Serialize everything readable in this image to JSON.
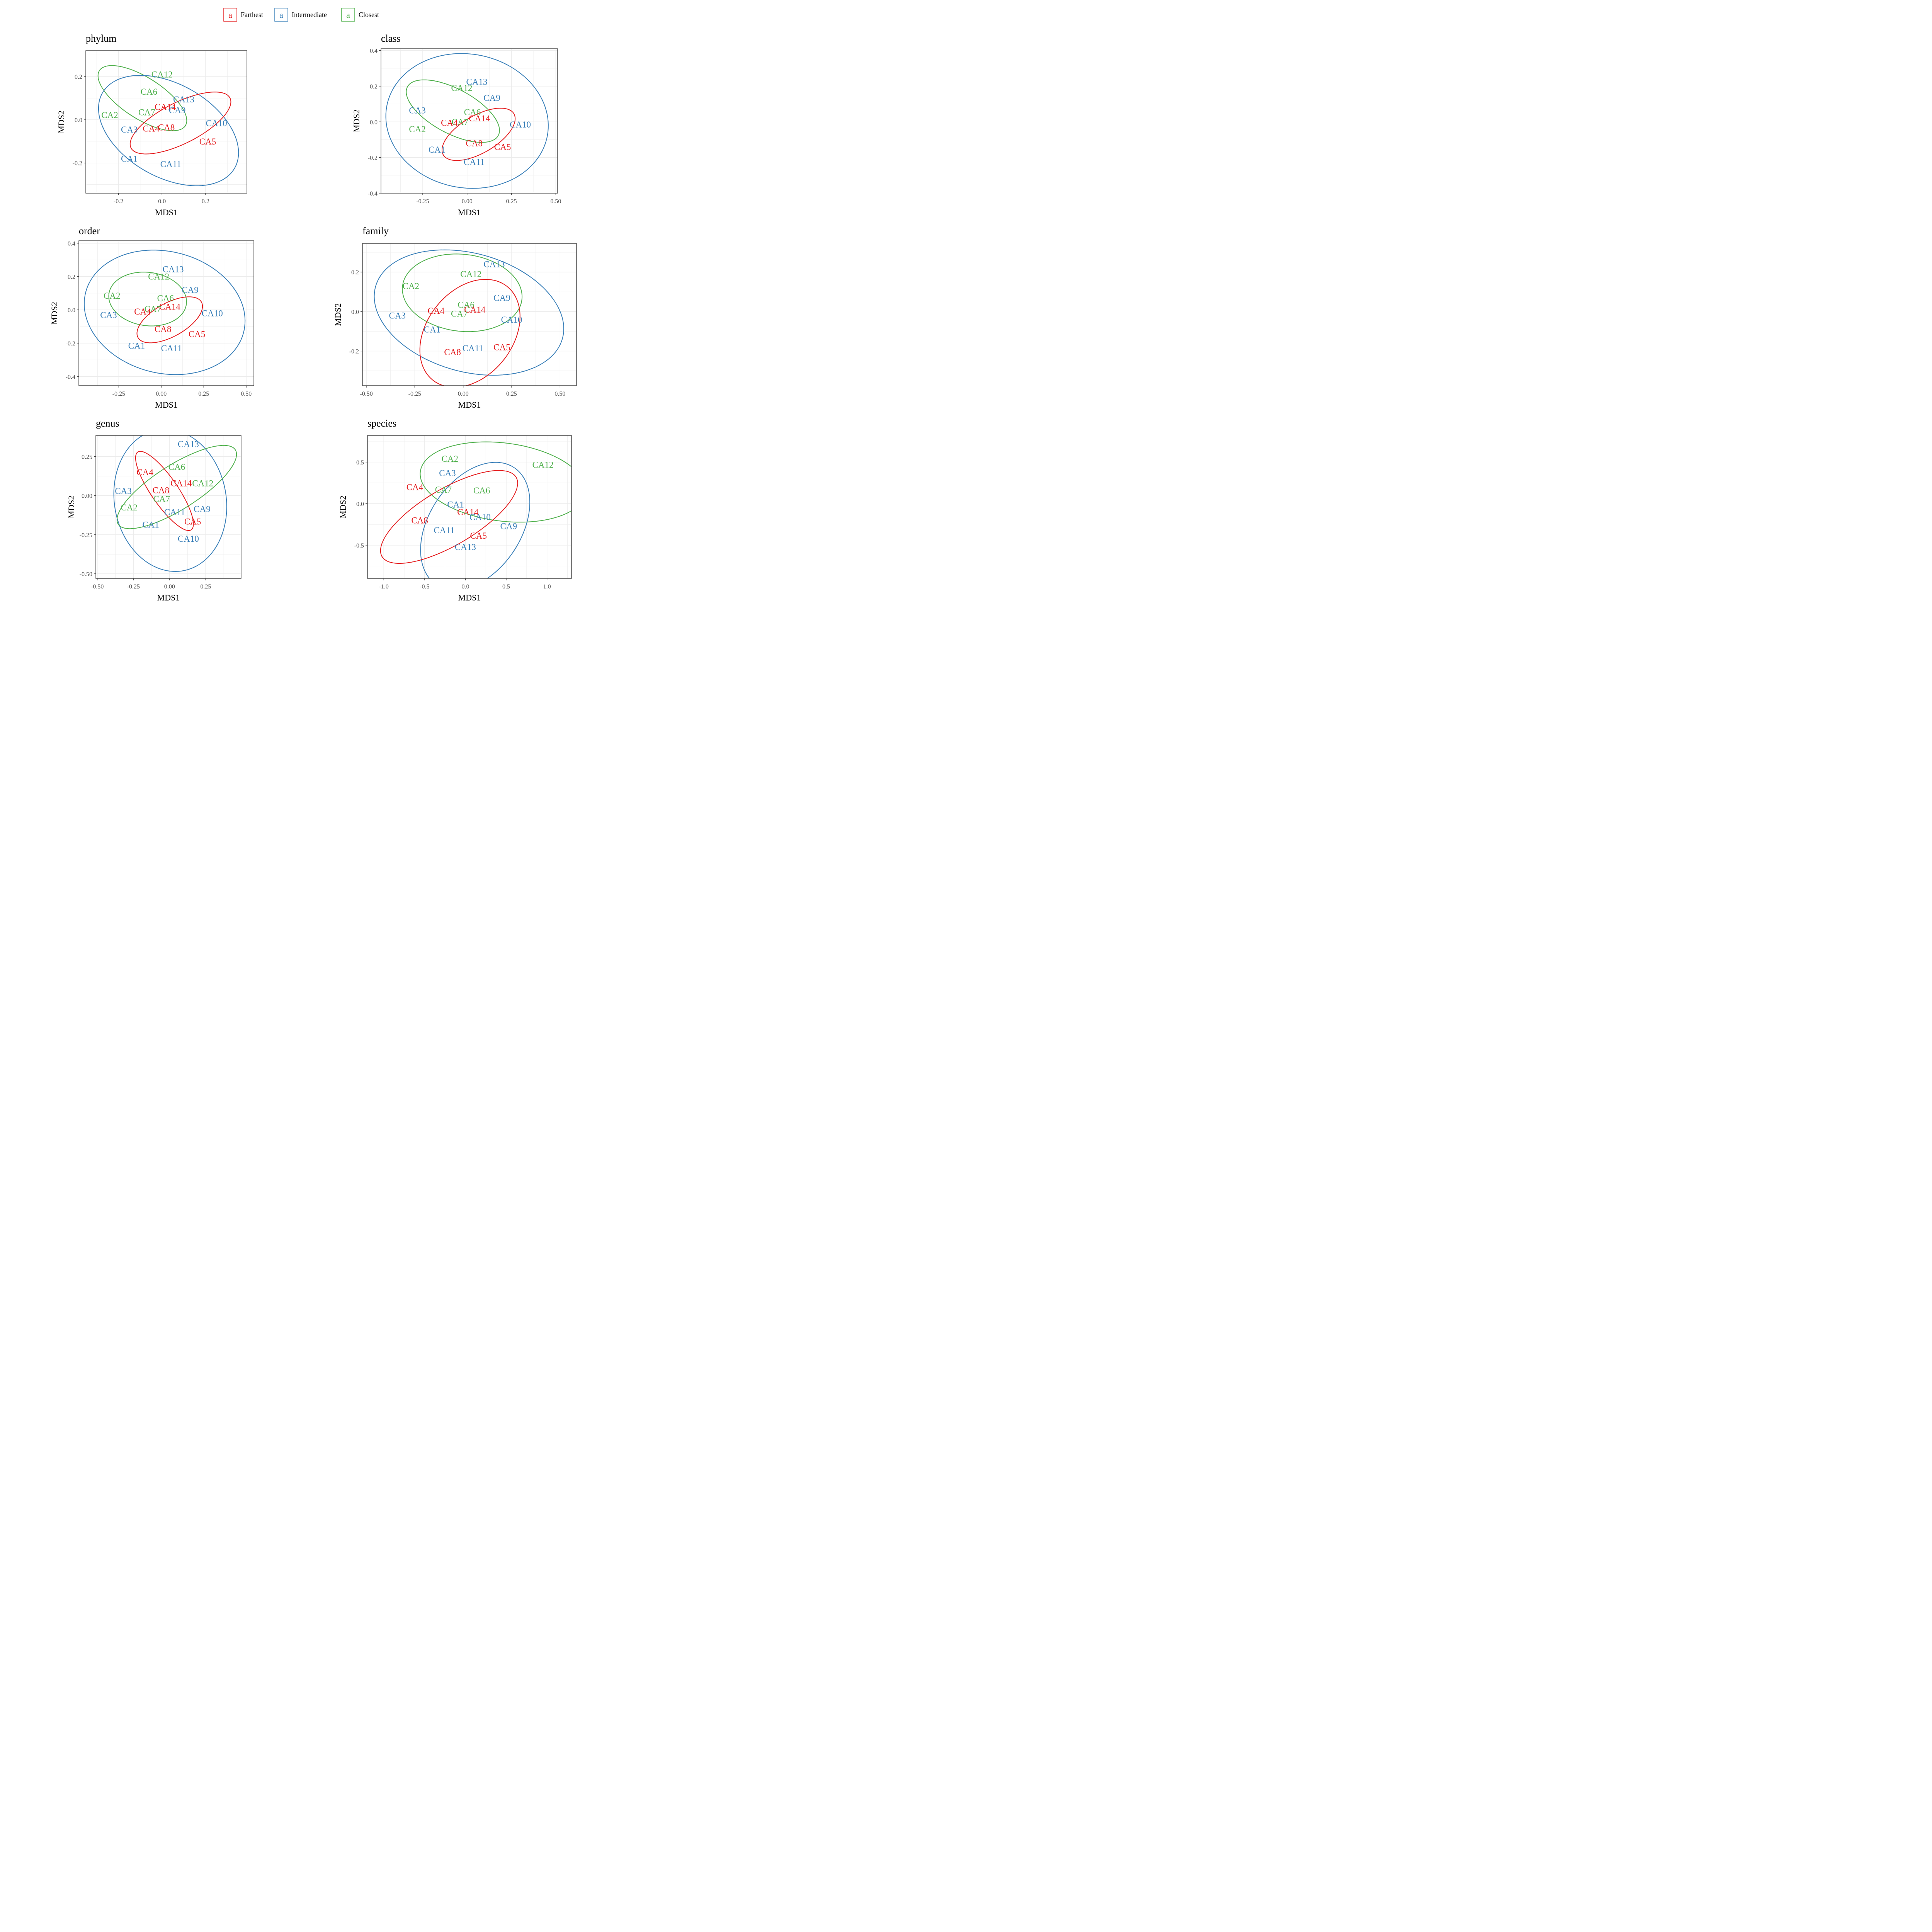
{
  "legend": {
    "groups": [
      {
        "name": "Farthest",
        "key_letter": "a",
        "color": "#e41a1c"
      },
      {
        "name": "Intermediate",
        "key_letter": "a",
        "color": "#377eb8"
      },
      {
        "name": "Closest",
        "key_letter": "a",
        "color": "#4daf4a"
      }
    ]
  },
  "chart_data": [
    {
      "type": "scatter",
      "title": "phylum",
      "xlabel": "MDS1",
      "ylabel": "MDS2",
      "xlim": [
        -0.35,
        0.39
      ],
      "ylim": [
        -0.34,
        0.32
      ],
      "xticks": [
        -0.2,
        0.0,
        0.2
      ],
      "xtick_labels": [
        "-0.2",
        "0.0",
        "0.2"
      ],
      "yticks": [
        -0.2,
        0.0,
        0.2
      ],
      "ytick_labels": [
        "-0.2",
        "0.0",
        "0.2"
      ],
      "grid": true,
      "points": [
        {
          "label": "CA12",
          "group": "Closest",
          "x": 0.0,
          "y": 0.21
        },
        {
          "label": "CA6",
          "group": "Closest",
          "x": -0.06,
          "y": 0.13
        },
        {
          "label": "CA13",
          "group": "Intermediate",
          "x": 0.1,
          "y": 0.095
        },
        {
          "label": "CA14",
          "group": "Farthest",
          "x": 0.015,
          "y": 0.06
        },
        {
          "label": "CA9",
          "group": "Intermediate",
          "x": 0.07,
          "y": 0.045
        },
        {
          "label": "CA2",
          "group": "Closest",
          "x": -0.24,
          "y": 0.022
        },
        {
          "label": "CA7",
          "group": "Closest",
          "x": -0.07,
          "y": 0.035
        },
        {
          "label": "CA10",
          "group": "Intermediate",
          "x": 0.25,
          "y": -0.015
        },
        {
          "label": "CA8",
          "group": "Farthest",
          "x": 0.02,
          "y": -0.035
        },
        {
          "label": "CA4",
          "group": "Farthest",
          "x": -0.05,
          "y": -0.04
        },
        {
          "label": "CA3",
          "group": "Intermediate",
          "x": -0.15,
          "y": -0.045
        },
        {
          "label": "CA5",
          "group": "Farthest",
          "x": 0.21,
          "y": -0.1
        },
        {
          "label": "CA1",
          "group": "Intermediate",
          "x": -0.15,
          "y": -0.18
        },
        {
          "label": "CA11",
          "group": "Intermediate",
          "x": 0.04,
          "y": -0.205
        }
      ],
      "ellipses": [
        {
          "group": "Closest",
          "cx": -0.09,
          "cy": 0.1,
          "rx": 0.235,
          "ry": 0.095,
          "angle_deg": -33
        },
        {
          "group": "Intermediate",
          "cx": 0.03,
          "cy": -0.05,
          "rx": 0.35,
          "ry": 0.215,
          "angle_deg": -30
        },
        {
          "group": "Farthest",
          "cx": 0.085,
          "cy": -0.015,
          "rx": 0.255,
          "ry": 0.095,
          "angle_deg": 27
        }
      ]
    },
    {
      "type": "scatter",
      "title": "class",
      "xlabel": "MDS1",
      "ylabel": "MDS2",
      "xlim": [
        -0.485,
        0.51
      ],
      "ylim": [
        -0.4,
        0.41
      ],
      "xticks": [
        -0.25,
        0.0,
        0.25,
        0.5
      ],
      "xtick_labels": [
        "-0.25",
        "0.00",
        "0.25",
        "0.50"
      ],
      "yticks": [
        -0.4,
        -0.2,
        0.0,
        0.2,
        0.4
      ],
      "ytick_labels": [
        "-0.4",
        "-0.2",
        "0.0",
        "0.2",
        "0.4"
      ],
      "grid": true,
      "points": [
        {
          "label": "CA13",
          "group": "Intermediate",
          "x": 0.055,
          "y": 0.225
        },
        {
          "label": "CA12",
          "group": "Closest",
          "x": -0.03,
          "y": 0.19
        },
        {
          "label": "CA9",
          "group": "Intermediate",
          "x": 0.14,
          "y": 0.135
        },
        {
          "label": "CA3",
          "group": "Intermediate",
          "x": -0.28,
          "y": 0.065
        },
        {
          "label": "CA6",
          "group": "Closest",
          "x": 0.03,
          "y": 0.055
        },
        {
          "label": "CA14",
          "group": "Farthest",
          "x": 0.07,
          "y": 0.02
        },
        {
          "label": "CA7",
          "group": "Closest",
          "x": -0.04,
          "y": 0.0
        },
        {
          "label": "CA4",
          "group": "Farthest",
          "x": -0.1,
          "y": -0.005
        },
        {
          "label": "CA10",
          "group": "Intermediate",
          "x": 0.3,
          "y": -0.015
        },
        {
          "label": "CA2",
          "group": "Closest",
          "x": -0.28,
          "y": -0.04
        },
        {
          "label": "CA8",
          "group": "Farthest",
          "x": 0.04,
          "y": -0.12
        },
        {
          "label": "CA5",
          "group": "Farthest",
          "x": 0.2,
          "y": -0.14
        },
        {
          "label": "CA1",
          "group": "Intermediate",
          "x": -0.17,
          "y": -0.155
        },
        {
          "label": "CA11",
          "group": "Intermediate",
          "x": 0.04,
          "y": -0.225
        }
      ],
      "ellipses": [
        {
          "group": "Intermediate",
          "cx": 0.0,
          "cy": 0.005,
          "rx": 0.46,
          "ry": 0.375,
          "angle_deg": -10
        },
        {
          "group": "Closest",
          "cx": -0.08,
          "cy": 0.06,
          "rx": 0.29,
          "ry": 0.125,
          "angle_deg": -28
        },
        {
          "group": "Farthest",
          "cx": 0.065,
          "cy": -0.07,
          "rx": 0.23,
          "ry": 0.105,
          "angle_deg": 30
        }
      ]
    },
    {
      "type": "scatter",
      "title": "order",
      "xlabel": "MDS1",
      "ylabel": "MDS2",
      "xlim": [
        -0.485,
        0.545
      ],
      "ylim": [
        -0.455,
        0.415
      ],
      "xticks": [
        -0.25,
        0.0,
        0.25,
        0.5
      ],
      "xtick_labels": [
        "-0.25",
        "0.00",
        "0.25",
        "0.50"
      ],
      "yticks": [
        -0.4,
        -0.2,
        0.0,
        0.2,
        0.4
      ],
      "ytick_labels": [
        "-0.4",
        "-0.2",
        "0.0",
        "0.2",
        "0.4"
      ],
      "grid": true,
      "points": [
        {
          "label": "CA13",
          "group": "Intermediate",
          "x": 0.07,
          "y": 0.245
        },
        {
          "label": "CA12",
          "group": "Closest",
          "x": -0.015,
          "y": 0.2
        },
        {
          "label": "CA9",
          "group": "Intermediate",
          "x": 0.17,
          "y": 0.12
        },
        {
          "label": "CA2",
          "group": "Closest",
          "x": -0.29,
          "y": 0.085
        },
        {
          "label": "CA6",
          "group": "Closest",
          "x": 0.025,
          "y": 0.07
        },
        {
          "label": "CA14",
          "group": "Farthest",
          "x": 0.05,
          "y": 0.02
        },
        {
          "label": "CA7",
          "group": "Closest",
          "x": -0.05,
          "y": 0.005
        },
        {
          "label": "CA4",
          "group": "Farthest",
          "x": -0.11,
          "y": -0.01
        },
        {
          "label": "CA10",
          "group": "Intermediate",
          "x": 0.3,
          "y": -0.02
        },
        {
          "label": "CA3",
          "group": "Intermediate",
          "x": -0.31,
          "y": -0.03
        },
        {
          "label": "CA8",
          "group": "Farthest",
          "x": 0.01,
          "y": -0.115
        },
        {
          "label": "CA5",
          "group": "Farthest",
          "x": 0.21,
          "y": -0.145
        },
        {
          "label": "CA1",
          "group": "Intermediate",
          "x": -0.145,
          "y": -0.215
        },
        {
          "label": "CA11",
          "group": "Intermediate",
          "x": 0.06,
          "y": -0.23
        }
      ],
      "ellipses": [
        {
          "group": "Intermediate",
          "cx": 0.02,
          "cy": -0.015,
          "rx": 0.48,
          "ry": 0.365,
          "angle_deg": -15
        },
        {
          "group": "Closest",
          "cx": -0.08,
          "cy": 0.065,
          "rx": 0.23,
          "ry": 0.16,
          "angle_deg": -8
        },
        {
          "group": "Farthest",
          "cx": 0.05,
          "cy": -0.06,
          "rx": 0.215,
          "ry": 0.1,
          "angle_deg": 30
        }
      ]
    },
    {
      "type": "scatter",
      "title": "family",
      "xlabel": "MDS1",
      "ylabel": "MDS2",
      "xlim": [
        -0.52,
        0.585
      ],
      "ylim": [
        -0.375,
        0.345
      ],
      "xticks": [
        -0.5,
        -0.25,
        0.0,
        0.25,
        0.5
      ],
      "xtick_labels": [
        "-0.50",
        "-0.25",
        "0.00",
        "0.25",
        "0.50"
      ],
      "yticks": [
        -0.2,
        0.0,
        0.2
      ],
      "ytick_labels": [
        "-0.2",
        "0.0",
        "0.2"
      ],
      "grid": true,
      "points": [
        {
          "label": "CA13",
          "group": "Intermediate",
          "x": 0.16,
          "y": 0.24
        },
        {
          "label": "CA12",
          "group": "Closest",
          "x": 0.04,
          "y": 0.19
        },
        {
          "label": "CA2",
          "group": "Closest",
          "x": -0.27,
          "y": 0.13
        },
        {
          "label": "CA9",
          "group": "Intermediate",
          "x": 0.2,
          "y": 0.07
        },
        {
          "label": "CA6",
          "group": "Closest",
          "x": 0.015,
          "y": 0.035
        },
        {
          "label": "CA14",
          "group": "Farthest",
          "x": 0.06,
          "y": 0.01
        },
        {
          "label": "CA4",
          "group": "Farthest",
          "x": -0.14,
          "y": 0.005
        },
        {
          "label": "CA7",
          "group": "Closest",
          "x": -0.02,
          "y": -0.01
        },
        {
          "label": "CA3",
          "group": "Intermediate",
          "x": -0.34,
          "y": -0.02
        },
        {
          "label": "CA10",
          "group": "Intermediate",
          "x": 0.25,
          "y": -0.04
        },
        {
          "label": "CA1",
          "group": "Intermediate",
          "x": -0.16,
          "y": -0.09
        },
        {
          "label": "CA11",
          "group": "Intermediate",
          "x": 0.05,
          "y": -0.185
        },
        {
          "label": "CA5",
          "group": "Farthest",
          "x": 0.2,
          "y": -0.18
        },
        {
          "label": "CA8",
          "group": "Farthest",
          "x": -0.055,
          "y": -0.205
        }
      ],
      "ellipses": [
        {
          "group": "Intermediate",
          "cx": 0.03,
          "cy": -0.005,
          "rx": 0.5,
          "ry": 0.3,
          "angle_deg": -15
        },
        {
          "group": "Closest",
          "cx": -0.005,
          "cy": 0.095,
          "rx": 0.31,
          "ry": 0.195,
          "angle_deg": -6
        },
        {
          "group": "Farthest",
          "cx": 0.035,
          "cy": -0.11,
          "rx": 0.305,
          "ry": 0.22,
          "angle_deg": 50
        }
      ]
    },
    {
      "type": "scatter",
      "title": "genus",
      "xlabel": "MDS1",
      "ylabel": "MDS2",
      "xlim": [
        -0.51,
        0.495
      ],
      "ylim": [
        -0.53,
        0.385
      ],
      "xticks": [
        -0.5,
        -0.25,
        0.0,
        0.25
      ],
      "xtick_labels": [
        "-0.50",
        "-0.25",
        "0.00",
        "0.25"
      ],
      "yticks": [
        -0.5,
        -0.25,
        0.0,
        0.25
      ],
      "ytick_labels": [
        "-0.50",
        "-0.25",
        "0.00",
        "0.25"
      ],
      "grid": true,
      "points": [
        {
          "label": "CA13",
          "group": "Intermediate",
          "x": 0.13,
          "y": 0.33
        },
        {
          "label": "CA6",
          "group": "Closest",
          "x": 0.05,
          "y": 0.185
        },
        {
          "label": "CA4",
          "group": "Farthest",
          "x": -0.17,
          "y": 0.15
        },
        {
          "label": "CA14",
          "group": "Farthest",
          "x": 0.08,
          "y": 0.08
        },
        {
          "label": "CA12",
          "group": "Closest",
          "x": 0.23,
          "y": 0.08
        },
        {
          "label": "CA3",
          "group": "Intermediate",
          "x": -0.32,
          "y": 0.03
        },
        {
          "label": "CA8",
          "group": "Farthest",
          "x": -0.06,
          "y": 0.035
        },
        {
          "label": "CA7",
          "group": "Closest",
          "x": -0.055,
          "y": -0.02
        },
        {
          "label": "CA2",
          "group": "Closest",
          "x": -0.28,
          "y": -0.075
        },
        {
          "label": "CA11",
          "group": "Intermediate",
          "x": 0.035,
          "y": -0.105
        },
        {
          "label": "CA9",
          "group": "Intermediate",
          "x": 0.225,
          "y": -0.085
        },
        {
          "label": "CA5",
          "group": "Farthest",
          "x": 0.16,
          "y": -0.165
        },
        {
          "label": "CA1",
          "group": "Intermediate",
          "x": -0.13,
          "y": -0.185
        },
        {
          "label": "CA10",
          "group": "Intermediate",
          "x": 0.13,
          "y": -0.275
        }
      ],
      "ellipses": [
        {
          "group": "Intermediate",
          "cx": 0.005,
          "cy": -0.03,
          "rx": 0.46,
          "ry": 0.385,
          "angle_deg": -75
        },
        {
          "group": "Farthest",
          "cx": -0.035,
          "cy": 0.03,
          "rx": 0.31,
          "ry": 0.09,
          "angle_deg": -53
        },
        {
          "group": "Closest",
          "cx": 0.05,
          "cy": 0.055,
          "rx": 0.47,
          "ry": 0.145,
          "angle_deg": 30
        }
      ]
    },
    {
      "type": "scatter",
      "title": "species",
      "xlabel": "MDS1",
      "ylabel": "MDS2",
      "xlim": [
        -1.2,
        1.3
      ],
      "ylim": [
        -0.9,
        0.82
      ],
      "xticks": [
        -1.0,
        -0.5,
        0.0,
        0.5,
        1.0
      ],
      "xtick_labels": [
        "-1.0",
        "-0.5",
        "0.0",
        "0.5",
        "1.0"
      ],
      "yticks": [
        -0.5,
        0.0,
        0.5
      ],
      "ytick_labels": [
        "-0.5",
        "0.0",
        "0.5"
      ],
      "grid": true,
      "points": [
        {
          "label": "CA2",
          "group": "Closest",
          "x": -0.19,
          "y": 0.54
        },
        {
          "label": "CA12",
          "group": "Closest",
          "x": 0.95,
          "y": 0.47
        },
        {
          "label": "CA3",
          "group": "Intermediate",
          "x": -0.22,
          "y": 0.37
        },
        {
          "label": "CA4",
          "group": "Farthest",
          "x": -0.62,
          "y": 0.2
        },
        {
          "label": "CA7",
          "group": "Closest",
          "x": -0.27,
          "y": 0.17
        },
        {
          "label": "CA6",
          "group": "Closest",
          "x": 0.2,
          "y": 0.16
        },
        {
          "label": "CA1",
          "group": "Intermediate",
          "x": -0.12,
          "y": -0.01
        },
        {
          "label": "CA14",
          "group": "Farthest",
          "x": 0.03,
          "y": -0.1
        },
        {
          "label": "CA10",
          "group": "Intermediate",
          "x": 0.18,
          "y": -0.16
        },
        {
          "label": "CA8",
          "group": "Farthest",
          "x": -0.56,
          "y": -0.2
        },
        {
          "label": "CA9",
          "group": "Intermediate",
          "x": 0.53,
          "y": -0.27
        },
        {
          "label": "CA11",
          "group": "Intermediate",
          "x": -0.26,
          "y": -0.32
        },
        {
          "label": "CA5",
          "group": "Farthest",
          "x": 0.16,
          "y": -0.385
        },
        {
          "label": "CA13",
          "group": "Intermediate",
          "x": 0.0,
          "y": -0.52
        }
      ],
      "ellipses": [
        {
          "group": "Closest",
          "cx": 0.46,
          "cy": 0.26,
          "rx": 1.02,
          "ry": 0.47,
          "angle_deg": -7
        },
        {
          "group": "Intermediate",
          "cx": 0.12,
          "cy": -0.27,
          "rx": 0.85,
          "ry": 0.56,
          "angle_deg": 55
        },
        {
          "group": "Farthest",
          "cx": -0.2,
          "cy": -0.16,
          "rx": 0.95,
          "ry": 0.34,
          "angle_deg": 30
        }
      ]
    }
  ]
}
